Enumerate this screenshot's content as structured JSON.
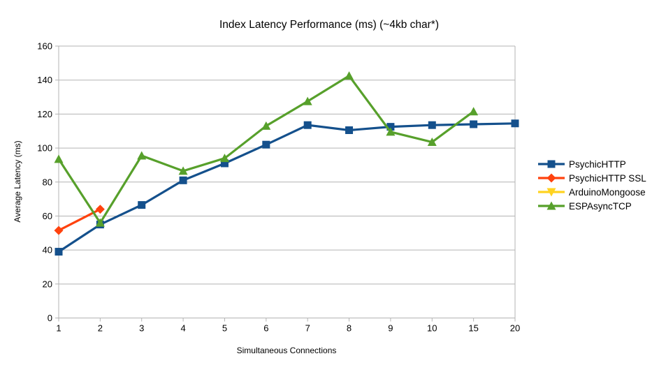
{
  "chart_data": {
    "type": "line",
    "title": "Index Latency Performance (ms) (~4kb char*)",
    "xlabel": "Simultaneous Connections",
    "ylabel": "Average Latency (ms)",
    "categories": [
      "1",
      "2",
      "3",
      "4",
      "5",
      "6",
      "7",
      "8",
      "9",
      "10",
      "15",
      "20"
    ],
    "ylim": [
      0,
      160
    ],
    "yticks": [
      0,
      20,
      40,
      60,
      80,
      100,
      120,
      140,
      160
    ],
    "grid": "horizontal",
    "grid_color": "#b3b3b3",
    "axis_color": "#b3b3b3",
    "legend_position": "right",
    "series": [
      {
        "name": "PsychicHTTP",
        "color": "#14508c",
        "marker": "square",
        "values": [
          39,
          55,
          66.5,
          81,
          91,
          102,
          113.5,
          110.5,
          112.5,
          113.5,
          114,
          114.5
        ]
      },
      {
        "name": "PsychicHTTP SSL",
        "color": "#ff420e",
        "marker": "diamond",
        "values": [
          51.5,
          64,
          null,
          null,
          null,
          null,
          null,
          null,
          null,
          null,
          null,
          null
        ]
      },
      {
        "name": "ArduinoMongoose",
        "color": "#ffd320",
        "marker": "triangle-down",
        "values": [
          null,
          null,
          null,
          null,
          null,
          null,
          null,
          null,
          null,
          null,
          null,
          null
        ]
      },
      {
        "name": "ESPAsyncTCP",
        "color": "#57a02b",
        "marker": "triangle-up",
        "values": [
          93.5,
          56,
          95.5,
          86.5,
          94,
          113,
          127.5,
          142.5,
          109.5,
          103.5,
          121.5,
          null
        ]
      }
    ]
  }
}
